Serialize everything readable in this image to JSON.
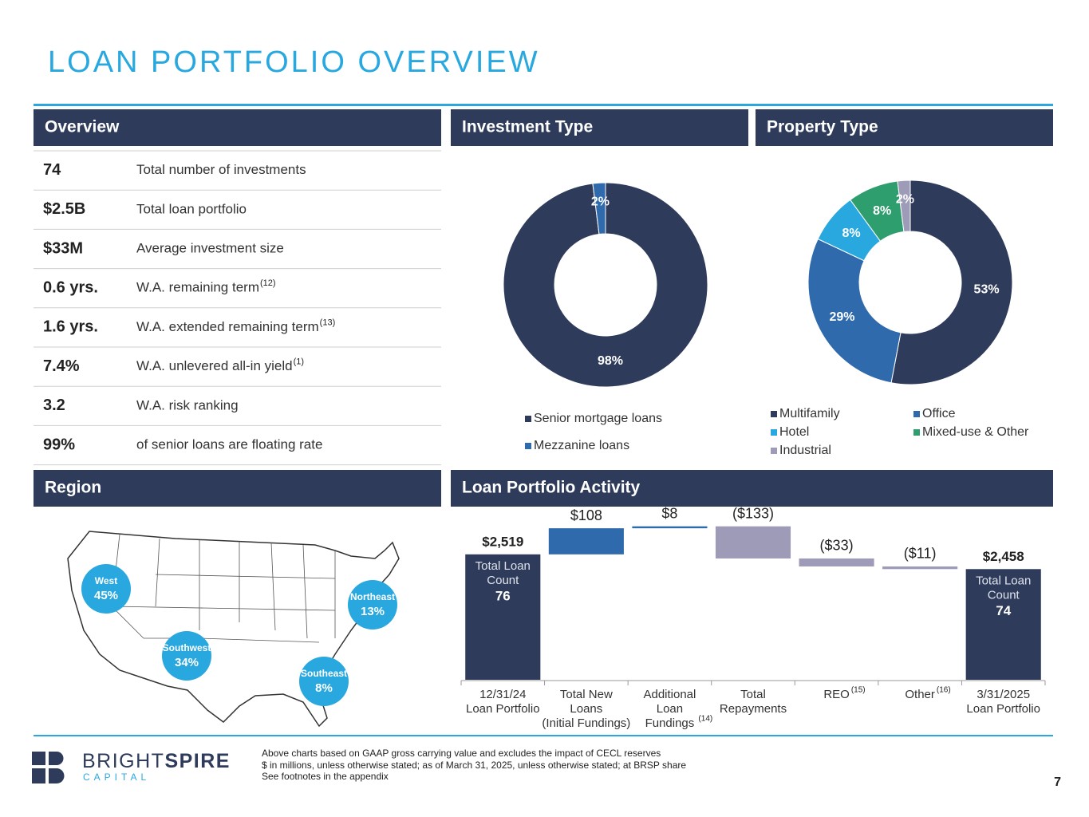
{
  "title": "LOAN PORTFOLIO OVERVIEW",
  "overview": {
    "header": "Overview",
    "rows": [
      {
        "value": "74",
        "label": "Total number of investments"
      },
      {
        "value": "$2.5B",
        "label": "Total loan portfolio"
      },
      {
        "value": "$33M",
        "label": "Average investment size"
      },
      {
        "value": "0.6 yrs.",
        "label": "W.A. remaining term",
        "note": "(12)"
      },
      {
        "value": "1.6 yrs.",
        "label": "W.A. extended remaining term",
        "note": "(13)"
      },
      {
        "value": "7.4%",
        "label": "W.A. unlevered all-in yield",
        "note": "(1)"
      },
      {
        "value": "3.2",
        "label": "W.A. risk ranking"
      },
      {
        "value": "99%",
        "label": "of senior loans are floating rate"
      }
    ]
  },
  "region": {
    "header": "Region",
    "areas": [
      {
        "name": "West",
        "share": "45%"
      },
      {
        "name": "Southwest",
        "share": "34%"
      },
      {
        "name": "Northeast",
        "share": "13%"
      },
      {
        "name": "Southeast",
        "share": "8%"
      }
    ]
  },
  "chart_data": [
    {
      "type": "donut",
      "title": "Investment Type",
      "categories": [
        "Senior mortgage loans",
        "Mezzanine loans"
      ],
      "values": [
        98,
        2
      ],
      "value_labels": [
        "98%",
        "2%"
      ],
      "colors": [
        "#2e3b5b",
        "#2e6aac"
      ]
    },
    {
      "type": "donut",
      "title": "Property Type",
      "categories": [
        "Multifamily",
        "Office",
        "Hotel",
        "Mixed-use & Other",
        "Industrial"
      ],
      "values": [
        53,
        29,
        8,
        8,
        2
      ],
      "value_labels": [
        "53%",
        "29%",
        "8%",
        "8%",
        "2%"
      ],
      "colors": [
        "#2e3b5b",
        "#2e6aac",
        "#29a8e0",
        "#2f9e6e",
        "#9d9bb8"
      ]
    },
    {
      "type": "waterfall",
      "title": "Loan Portfolio Activity",
      "categories": [
        "12/31/24\nLoan Portfolio",
        "Total New\nLoans\n(Initial Fundings)",
        "Additional\nLoan\nFundings",
        "Total\nRepayments",
        "REO",
        "Other",
        "3/31/2025\nLoan Portfolio"
      ],
      "category_notes": [
        null,
        null,
        "(14)",
        null,
        "(15)",
        "(16)",
        null
      ],
      "values": [
        2519,
        108,
        8,
        -133,
        -33,
        -11,
        2458
      ],
      "value_labels": [
        "$2,519",
        "$108",
        "$8",
        "($133)",
        "($33)",
        "($11)",
        "$2,458"
      ],
      "measures": [
        "absolute",
        "relative",
        "relative",
        "relative",
        "relative",
        "relative",
        "total"
      ],
      "colors": {
        "total": "#2e3b5b",
        "increase": "#2e6aac",
        "decrease": "#9d9bb8"
      },
      "start_count": {
        "label": "Total Loan\nCount",
        "value": "76"
      },
      "end_count": {
        "label": "Total Loan\nCount",
        "value": "74"
      },
      "ylim": [
        2000,
        2700
      ]
    }
  ],
  "footer": {
    "notes": [
      "Above charts based on GAAP gross carrying value and excludes the impact of CECL reserves",
      "$ in millions, unless otherwise stated; as of March 31, 2025, unless otherwise stated; at BRSP share",
      "See footnotes in the appendix"
    ],
    "page": "7",
    "logo": {
      "bright": "BRIGHT",
      "spire": "SPIRE",
      "capital": "CAPITAL"
    }
  }
}
